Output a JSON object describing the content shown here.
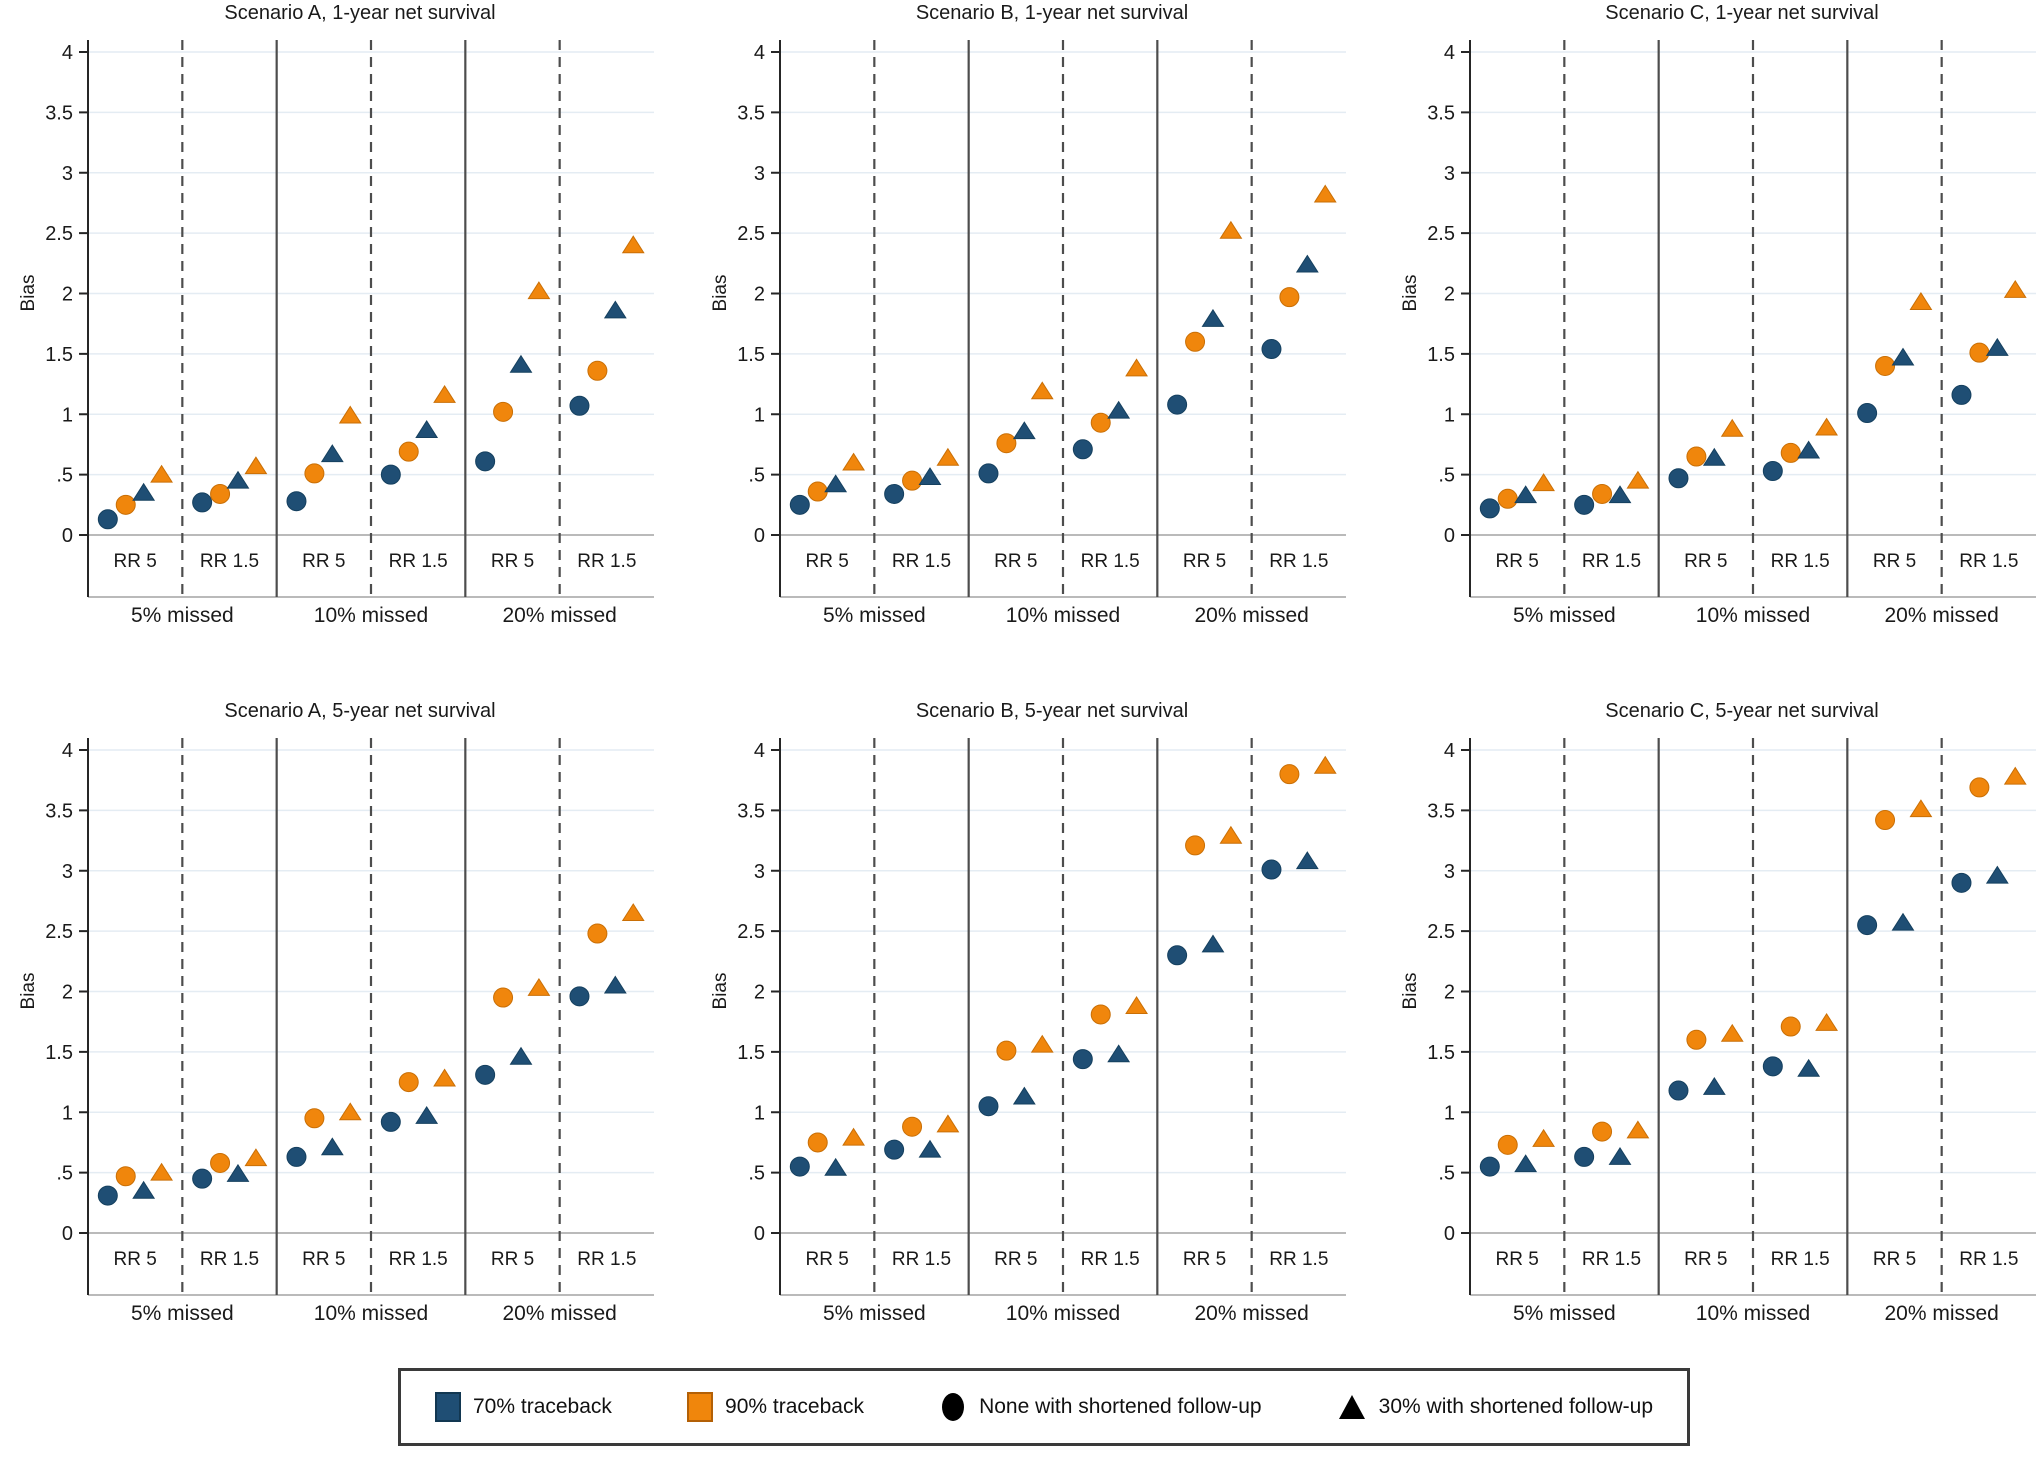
{
  "figure": {
    "background": "#ffffff",
    "colors": {
      "traceback70": "#1f4e74",
      "traceback90": "#f0860c",
      "gridline": "#e4ecf3",
      "zero_line": "#a3a3a3",
      "separator": "#4d4d4d",
      "axis": "#262626"
    }
  },
  "legend": {
    "items": [
      {
        "label": "70% traceback",
        "symbol": "square",
        "color": "#1f4e74"
      },
      {
        "label": "90% traceback",
        "symbol": "square",
        "color": "#f0860c"
      },
      {
        "label": "None with shortened follow-up",
        "symbol": "circle",
        "color": "#000000"
      },
      {
        "label": "30% with shortened follow-up",
        "symbol": "triangle",
        "color": "#000000"
      }
    ]
  },
  "chart_data": {
    "type": "scatter",
    "ylabel": "Bias",
    "ylim": [
      0,
      4
    ],
    "yticks": [
      "0",
      ".5",
      "1",
      "1.5",
      "2",
      "2.5",
      "3",
      "3.5",
      "4"
    ],
    "grid": true,
    "legend_position": "bottom",
    "group_labels": [
      "5% missed",
      "10% missed",
      "20% missed"
    ],
    "subgroup_labels": [
      "RR 5",
      "RR 1.5"
    ],
    "series": [
      {
        "id": "c70",
        "label": "70% traceback, none with shortened follow-up",
        "marker": "circle",
        "color_key": "traceback70"
      },
      {
        "id": "c90",
        "label": "90% traceback, none with shortened follow-up",
        "marker": "circle",
        "color_key": "traceback90"
      },
      {
        "id": "t70",
        "label": "70% traceback, 30% with shortened follow-up",
        "marker": "triangle",
        "color_key": "traceback70"
      },
      {
        "id": "t90",
        "label": "90% traceback, 30% with shortened follow-up",
        "marker": "triangle",
        "color_key": "traceback90"
      }
    ],
    "value_order": [
      "c70",
      "c90",
      "t70",
      "t90"
    ],
    "panels": [
      {
        "title": "Scenario A, 1-year net survival",
        "groups": [
          {
            "label": "5% missed",
            "subgroups": [
              {
                "label": "RR 5",
                "values": [
                  0.13,
                  0.25,
                  0.35,
                  0.5
                ]
              },
              {
                "label": "RR 1.5",
                "values": [
                  0.27,
                  0.34,
                  0.45,
                  0.57
                ]
              }
            ]
          },
          {
            "label": "10% missed",
            "subgroups": [
              {
                "label": "RR 5",
                "values": [
                  0.28,
                  0.51,
                  0.67,
                  0.99
                ]
              },
              {
                "label": "RR 1.5",
                "values": [
                  0.5,
                  0.69,
                  0.87,
                  1.16
                ]
              }
            ]
          },
          {
            "label": "20% missed",
            "subgroups": [
              {
                "label": "RR 5",
                "values": [
                  0.61,
                  1.02,
                  1.41,
                  2.02
                ]
              },
              {
                "label": "RR 1.5",
                "values": [
                  1.07,
                  1.36,
                  1.86,
                  2.4
                ]
              }
            ]
          }
        ]
      },
      {
        "title": "Scenario B, 1-year net survival",
        "groups": [
          {
            "label": "5% missed",
            "subgroups": [
              {
                "label": "RR 5",
                "values": [
                  0.25,
                  0.36,
                  0.42,
                  0.6
                ]
              },
              {
                "label": "RR 1.5",
                "values": [
                  0.34,
                  0.45,
                  0.48,
                  0.64
                ]
              }
            ]
          },
          {
            "label": "10% missed",
            "subgroups": [
              {
                "label": "RR 5",
                "values": [
                  0.51,
                  0.76,
                  0.86,
                  1.19
                ]
              },
              {
                "label": "RR 1.5",
                "values": [
                  0.71,
                  0.93,
                  1.03,
                  1.38
                ]
              }
            ]
          },
          {
            "label": "20% missed",
            "subgroups": [
              {
                "label": "RR 5",
                "values": [
                  1.08,
                  1.6,
                  1.79,
                  2.52
                ]
              },
              {
                "label": "RR 1.5",
                "values": [
                  1.54,
                  1.97,
                  2.24,
                  2.82
                ]
              }
            ]
          }
        ]
      },
      {
        "title": "Scenario C, 1-year net survival",
        "groups": [
          {
            "label": "5% missed",
            "subgroups": [
              {
                "label": "RR 5",
                "values": [
                  0.22,
                  0.3,
                  0.33,
                  0.43
                ]
              },
              {
                "label": "RR 1.5",
                "values": [
                  0.25,
                  0.34,
                  0.33,
                  0.45
                ]
              }
            ]
          },
          {
            "label": "10% missed",
            "subgroups": [
              {
                "label": "RR 5",
                "values": [
                  0.47,
                  0.65,
                  0.64,
                  0.88
                ]
              },
              {
                "label": "RR 1.5",
                "values": [
                  0.53,
                  0.68,
                  0.7,
                  0.89
                ]
              }
            ]
          },
          {
            "label": "20% missed",
            "subgroups": [
              {
                "label": "RR 5",
                "values": [
                  1.01,
                  1.4,
                  1.47,
                  1.93
                ]
              },
              {
                "label": "RR 1.5",
                "values": [
                  1.16,
                  1.51,
                  1.55,
                  2.03
                ]
              }
            ]
          }
        ]
      },
      {
        "title": "Scenario A, 5-year net survival",
        "groups": [
          {
            "label": "5% missed",
            "subgroups": [
              {
                "label": "RR 5",
                "values": [
                  0.31,
                  0.47,
                  0.35,
                  0.5
                ]
              },
              {
                "label": "RR 1.5",
                "values": [
                  0.45,
                  0.58,
                  0.49,
                  0.62
                ]
              }
            ]
          },
          {
            "label": "10% missed",
            "subgroups": [
              {
                "label": "RR 5",
                "values": [
                  0.63,
                  0.95,
                  0.71,
                  1.0
                ]
              },
              {
                "label": "RR 1.5",
                "values": [
                  0.92,
                  1.25,
                  0.97,
                  1.28
                ]
              }
            ]
          },
          {
            "label": "20% missed",
            "subgroups": [
              {
                "label": "RR 5",
                "values": [
                  1.31,
                  1.95,
                  1.46,
                  2.03
                ]
              },
              {
                "label": "RR 1.5",
                "values": [
                  1.96,
                  2.48,
                  2.05,
                  2.65
                ]
              }
            ]
          }
        ]
      },
      {
        "title": "Scenario B, 5-year net survival",
        "groups": [
          {
            "label": "5% missed",
            "subgroups": [
              {
                "label": "RR 5",
                "values": [
                  0.55,
                  0.75,
                  0.54,
                  0.79
                ]
              },
              {
                "label": "RR 1.5",
                "values": [
                  0.69,
                  0.88,
                  0.69,
                  0.9
                ]
              }
            ]
          },
          {
            "label": "10% missed",
            "subgroups": [
              {
                "label": "RR 5",
                "values": [
                  1.05,
                  1.51,
                  1.13,
                  1.56
                ]
              },
              {
                "label": "RR 1.5",
                "values": [
                  1.44,
                  1.81,
                  1.48,
                  1.88
                ]
              }
            ]
          },
          {
            "label": "20% missed",
            "subgroups": [
              {
                "label": "RR 5",
                "values": [
                  2.3,
                  3.21,
                  2.39,
                  3.29
                ]
              },
              {
                "label": "RR 1.5",
                "values": [
                  3.01,
                  3.8,
                  3.08,
                  3.87
                ]
              }
            ]
          }
        ]
      },
      {
        "title": "Scenario C, 5-year net survival",
        "groups": [
          {
            "label": "5% missed",
            "subgroups": [
              {
                "label": "RR 5",
                "values": [
                  0.55,
                  0.73,
                  0.57,
                  0.78
                ]
              },
              {
                "label": "RR 1.5",
                "values": [
                  0.63,
                  0.84,
                  0.63,
                  0.85
                ]
              }
            ]
          },
          {
            "label": "10% missed",
            "subgroups": [
              {
                "label": "RR 5",
                "values": [
                  1.18,
                  1.6,
                  1.21,
                  1.65
                ]
              },
              {
                "label": "RR 1.5",
                "values": [
                  1.38,
                  1.71,
                  1.36,
                  1.74
                ]
              }
            ]
          },
          {
            "label": "20% missed",
            "subgroups": [
              {
                "label": "RR 5",
                "values": [
                  2.55,
                  3.42,
                  2.57,
                  3.51
                ]
              },
              {
                "label": "RR 1.5",
                "values": [
                  2.9,
                  3.69,
                  2.96,
                  3.78
                ]
              }
            ]
          }
        ]
      }
    ]
  }
}
